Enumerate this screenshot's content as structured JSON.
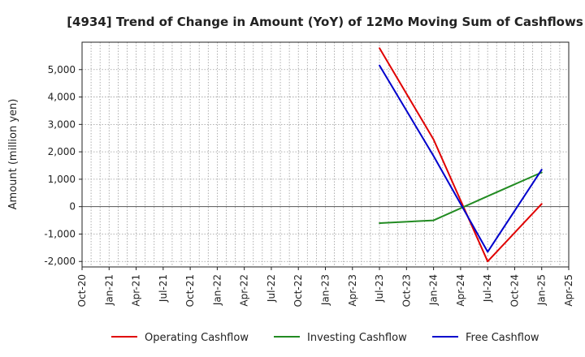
{
  "chart_data": {
    "type": "line",
    "title": "[4934]  Trend of Change in Amount (YoY) of 12Mo Moving Sum of Cashflows",
    "xlabel": "",
    "ylabel": "Amount (million yen)",
    "x_ticks": [
      "Oct-20",
      "Jan-21",
      "Apr-21",
      "Jul-21",
      "Oct-21",
      "Jan-22",
      "Apr-22",
      "Jul-22",
      "Oct-22",
      "Jan-23",
      "Apr-23",
      "Jul-23",
      "Oct-23",
      "Jan-24",
      "Apr-24",
      "Jul-24",
      "Oct-24",
      "Jan-25",
      "Apr-25"
    ],
    "y_ticks": [
      5000,
      4000,
      3000,
      2000,
      1000,
      0,
      -1000,
      -2000
    ],
    "y_tick_labels": [
      "5,000",
      "4,000",
      "3,000",
      "2,000",
      "1,000",
      "0",
      "-1,000",
      "-2,000"
    ],
    "ylim": [
      -2200,
      6000
    ],
    "grid": true,
    "legend_position": "bottom",
    "series": [
      {
        "name": "Operating Cashflow",
        "color": "#e00000",
        "x": [
          "Jul-23",
          "Jan-24",
          "Jul-24",
          "Jan-25"
        ],
        "values": [
          5780,
          2450,
          -2000,
          100
        ]
      },
      {
        "name": "Investing Cashflow",
        "color": "#228b22",
        "x": [
          "Jul-23",
          "Jan-24",
          "Jul-24",
          "Jan-25"
        ],
        "values": [
          -600,
          -500,
          380,
          1250
        ]
      },
      {
        "name": "Free Cashflow",
        "color": "#0000cc",
        "x": [
          "Jul-23",
          "Jan-24",
          "Jul-24",
          "Jan-25"
        ],
        "values": [
          5150,
          1850,
          -1650,
          1350
        ]
      }
    ]
  }
}
